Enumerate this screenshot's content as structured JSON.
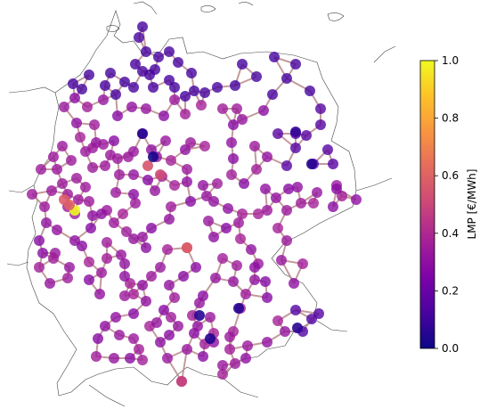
{
  "colorbar": {
    "label": "LMP [€/MWh]",
    "ticks": [
      "0.0",
      "0.2",
      "0.4",
      "0.6",
      "0.8",
      "1.0"
    ],
    "range": [
      0,
      1
    ],
    "colormap": [
      "#0d0887",
      "#6a00a8",
      "#b12a90",
      "#e16462",
      "#fca636",
      "#f0f921"
    ]
  },
  "colors": {
    "line": "#b8898b",
    "border": "#444444"
  },
  "nodes_note_values": {
    "typical": 0.3,
    "yellow_hotspot": 1.0,
    "red_hotspots": 0.6
  }
}
